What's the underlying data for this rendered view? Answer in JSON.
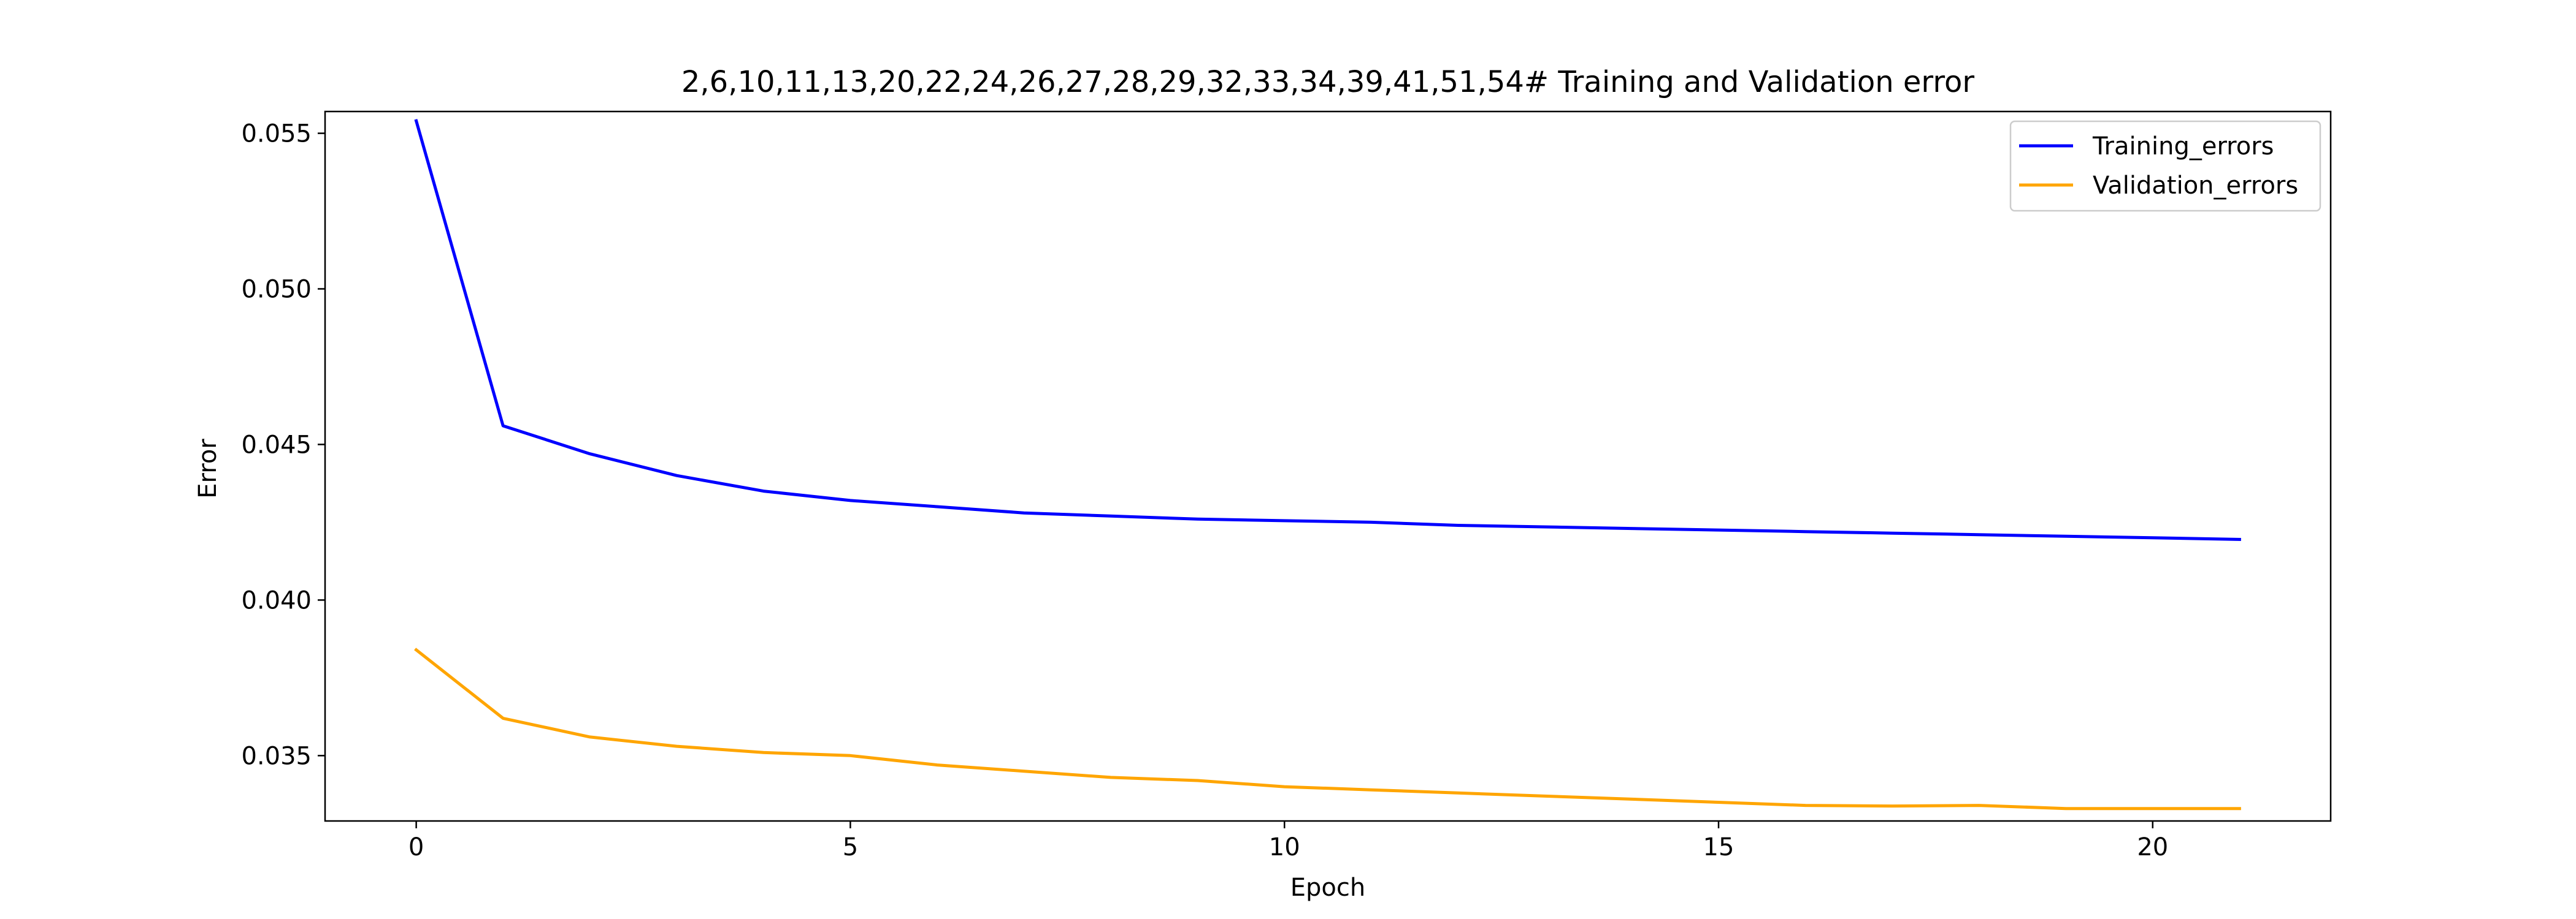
{
  "chart_data": {
    "type": "line",
    "title": "2,6,10,11,13,20,22,24,26,27,28,29,32,33,34,39,41,51,54# Training and Validation error",
    "xlabel": "Epoch",
    "ylabel": "Error",
    "xlim": [
      -1.05,
      22.05
    ],
    "ylim": [
      0.0329,
      0.0557
    ],
    "x_ticks": [
      0,
      5,
      10,
      15,
      20
    ],
    "x_tick_labels": [
      "0",
      "5",
      "10",
      "15",
      "20"
    ],
    "y_ticks": [
      0.035,
      0.04,
      0.045,
      0.05,
      0.055
    ],
    "y_tick_labels": [
      "0.035",
      "0.040",
      "0.045",
      "0.050",
      "0.055"
    ],
    "grid": false,
    "legend_position": "top-right",
    "x": [
      0,
      1,
      2,
      3,
      4,
      5,
      6,
      7,
      8,
      9,
      10,
      11,
      12,
      13,
      14,
      15,
      16,
      17,
      18,
      19,
      20,
      21
    ],
    "series": [
      {
        "name": "Training_errors",
        "color": "#0000ff",
        "values": [
          0.0554,
          0.0456,
          0.0447,
          0.044,
          0.0435,
          0.0432,
          0.043,
          0.0428,
          0.0427,
          0.0426,
          0.04255,
          0.0425,
          0.0424,
          0.04235,
          0.0423,
          0.04225,
          0.0422,
          0.04215,
          0.0421,
          0.04205,
          0.042,
          0.04195
        ]
      },
      {
        "name": "Validation_errors",
        "color": "#ffa500",
        "values": [
          0.0384,
          0.0362,
          0.0356,
          0.0353,
          0.0351,
          0.035,
          0.0347,
          0.0345,
          0.0343,
          0.0342,
          0.034,
          0.0339,
          0.0338,
          0.0337,
          0.0336,
          0.0335,
          0.0334,
          0.03338,
          0.0334,
          0.0333,
          0.0333,
          0.0333
        ]
      }
    ]
  }
}
